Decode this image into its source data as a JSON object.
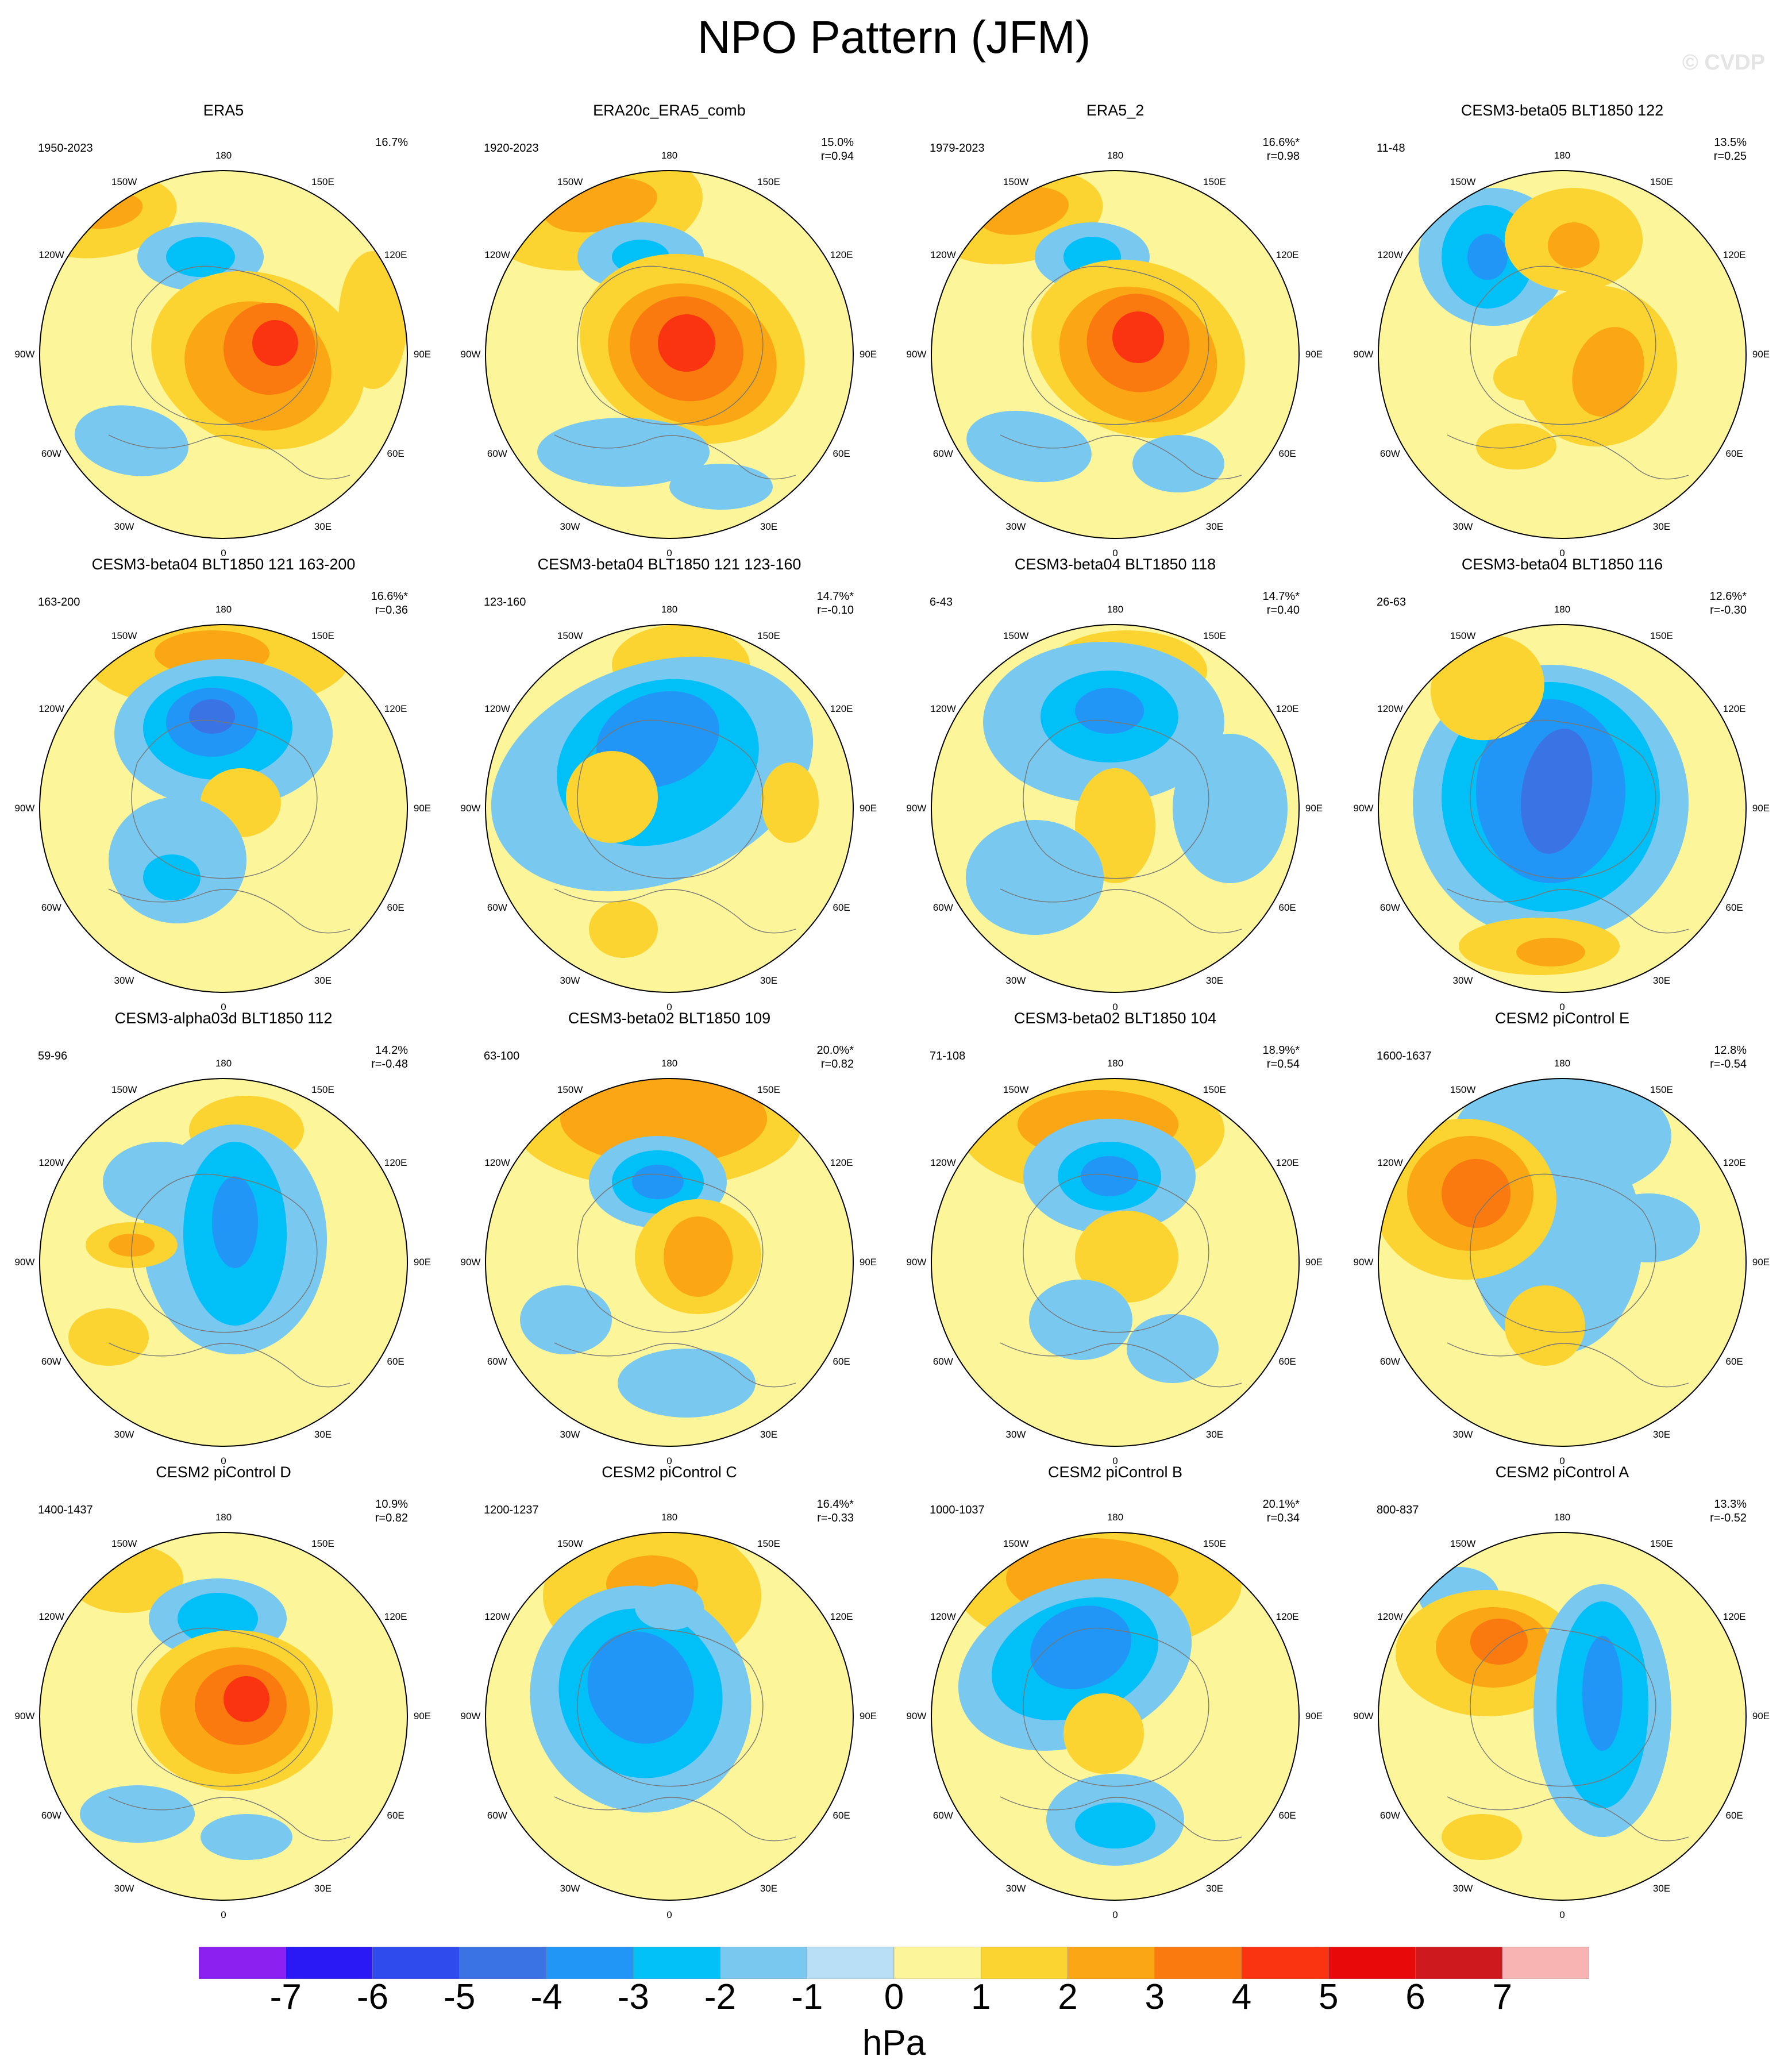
{
  "title": "NPO Pattern (JFM)",
  "watermark": "© CVDP",
  "lon_labels": [
    "180",
    "150E",
    "120E",
    "90E",
    "60E",
    "30E",
    "0",
    "30W",
    "60W",
    "90W",
    "120W",
    "150W"
  ],
  "colors": {
    "-7": "#8a1ff0",
    "-6": "#2a19f5",
    "-5": "#2f4aed",
    "-4": "#3a73e3",
    "-3": "#2196f7",
    "-2": "#01c0f7",
    "-1": "#79c8f0",
    "0n": "#b7def4",
    "0p": "#fdf59a",
    "1": "#fcd432",
    "2": "#fba614",
    "3": "#fb7a0f",
    "4": "#fa3410",
    "5": "#e80a0a",
    "6": "#ce1a1e",
    "7": "#f8b3b3"
  },
  "colorbar": {
    "ticks": [
      "-7",
      "-6",
      "-5",
      "-4",
      "-3",
      "-2",
      "-1",
      "0",
      "1",
      "2",
      "3",
      "4",
      "5",
      "6",
      "7"
    ],
    "units": "hPa"
  },
  "panels": [
    {
      "title": "ERA5",
      "period": "1950-2023",
      "pct": "16.7%",
      "corr": "",
      "blobs": [
        [
          "1",
          -210,
          -240,
          130,
          70,
          -10
        ],
        [
          "2",
          -200,
          -250,
          60,
          30,
          -10
        ],
        [
          "-1",
          -40,
          -170,
          110,
          60,
          0
        ],
        [
          "-2",
          -40,
          -170,
          60,
          35,
          0
        ],
        [
          "1",
          60,
          10,
          190,
          150,
          20
        ],
        [
          "2",
          60,
          20,
          130,
          110,
          20
        ],
        [
          "3",
          80,
          -10,
          80,
          80,
          20
        ],
        [
          "4",
          90,
          -20,
          40,
          40,
          0
        ],
        [
          "-1",
          -160,
          150,
          100,
          60,
          10
        ],
        [
          "1",
          260,
          -60,
          60,
          120,
          0
        ]
      ]
    },
    {
      "title": "ERA20c_ERA5_comb",
      "period": "1920-2023",
      "pct": "15.0%",
      "corr": "r=0.94",
      "blobs": [
        [
          "1",
          -130,
          -250,
          190,
          100,
          -10
        ],
        [
          "2",
          -120,
          -260,
          100,
          45,
          -10
        ],
        [
          "-1",
          -50,
          -170,
          110,
          60,
          0
        ],
        [
          "-2",
          -50,
          -170,
          50,
          30,
          0
        ],
        [
          "1",
          40,
          -10,
          200,
          160,
          20
        ],
        [
          "2",
          40,
          0,
          150,
          120,
          20
        ],
        [
          "3",
          30,
          -10,
          100,
          90,
          20
        ],
        [
          "4",
          30,
          -20,
          50,
          50,
          0
        ],
        [
          "-1",
          -80,
          170,
          150,
          60,
          0
        ],
        [
          "-1",
          90,
          230,
          90,
          40,
          0
        ]
      ]
    },
    {
      "title": "ERA5_2",
      "period": "1979-2023",
      "pct": "16.6%*",
      "corr": "r=0.98",
      "blobs": [
        [
          "1",
          -170,
          -240,
          150,
          80,
          -10
        ],
        [
          "2",
          -160,
          -250,
          80,
          40,
          -10
        ],
        [
          "-1",
          -40,
          -170,
          100,
          60,
          0
        ],
        [
          "-2",
          -40,
          -170,
          50,
          35,
          0
        ],
        [
          "1",
          40,
          -10,
          190,
          150,
          20
        ],
        [
          "2",
          40,
          0,
          140,
          115,
          20
        ],
        [
          "3",
          40,
          -20,
          90,
          85,
          20
        ],
        [
          "4",
          40,
          -30,
          45,
          45,
          0
        ],
        [
          "-1",
          -150,
          160,
          110,
          60,
          10
        ],
        [
          "-1",
          110,
          190,
          80,
          50,
          0
        ]
      ]
    },
    {
      "title": "CESM3-beta05 BLT1850 122",
      "period": "11-48",
      "pct": "13.5%",
      "corr": "r=0.25",
      "blobs": [
        [
          "-1",
          -120,
          -170,
          130,
          120,
          0
        ],
        [
          "-2",
          -130,
          -170,
          80,
          90,
          0
        ],
        [
          "-3",
          -130,
          -170,
          35,
          40,
          0
        ],
        [
          "1",
          20,
          -200,
          120,
          90,
          0
        ],
        [
          "2",
          20,
          -190,
          45,
          40,
          0
        ],
        [
          "1",
          60,
          20,
          140,
          140,
          20
        ],
        [
          "2",
          80,
          30,
          60,
          80,
          20
        ],
        [
          "1",
          -60,
          40,
          60,
          40,
          0
        ],
        [
          "1",
          -80,
          160,
          70,
          40,
          0
        ]
      ]
    },
    {
      "title": "CESM3-beta04 BLT1850 121 163-200",
      "period": "163-200",
      "pct": "16.6%*",
      "corr": "r=0.36",
      "blobs": [
        [
          "1",
          -10,
          -260,
          230,
          90,
          0
        ],
        [
          "2",
          -20,
          -270,
          100,
          40,
          0
        ],
        [
          "-1",
          0,
          -130,
          190,
          130,
          0
        ],
        [
          "-2",
          -10,
          -140,
          130,
          90,
          0
        ],
        [
          "-3",
          -20,
          -150,
          80,
          60,
          0
        ],
        [
          "-4",
          -20,
          -160,
          40,
          30,
          0
        ],
        [
          "1",
          30,
          -10,
          70,
          60,
          0
        ],
        [
          "-1",
          -80,
          90,
          120,
          110,
          0
        ],
        [
          "-2",
          -90,
          120,
          50,
          40,
          0
        ]
      ]
    },
    {
      "title": "CESM3-beta04 BLT1850 121 123-160",
      "period": "123-160",
      "pct": "14.7%*",
      "corr": "r=-0.10",
      "blobs": [
        [
          "1",
          20,
          -250,
          120,
          70,
          0
        ],
        [
          "-1",
          -30,
          -60,
          290,
          190,
          -20
        ],
        [
          "-1",
          -180,
          -40,
          100,
          80,
          0
        ],
        [
          "-2",
          -20,
          -80,
          180,
          140,
          -20
        ],
        [
          "-3",
          -20,
          -120,
          110,
          80,
          -20
        ],
        [
          "1",
          -100,
          -20,
          80,
          80,
          0
        ],
        [
          "1",
          -80,
          210,
          60,
          50,
          0
        ],
        [
          "1",
          210,
          -10,
          50,
          70,
          0
        ]
      ]
    },
    {
      "title": "CESM3-beta04 BLT1850 118",
      "period": "6-43",
      "pct": "14.7%*",
      "corr": "r=0.40",
      "blobs": [
        [
          "1",
          20,
          -240,
          140,
          70,
          0
        ],
        [
          "2",
          30,
          -240,
          60,
          30,
          0
        ],
        [
          "-1",
          -20,
          -150,
          210,
          140,
          0
        ],
        [
          "-2",
          -10,
          -160,
          120,
          80,
          0
        ],
        [
          "-3",
          -10,
          -170,
          60,
          40,
          0
        ],
        [
          "1",
          0,
          30,
          70,
          100,
          0
        ],
        [
          "-1",
          -140,
          120,
          120,
          100,
          0
        ],
        [
          "-1",
          200,
          0,
          100,
          130,
          0
        ]
      ]
    },
    {
      "title": "CESM3-beta04 BLT1850 116",
      "period": "26-63",
      "pct": "12.6%*",
      "corr": "r=-0.30",
      "blobs": [
        [
          "-1",
          -20,
          -10,
          240,
          240,
          0
        ],
        [
          "-2",
          -20,
          -20,
          190,
          200,
          0
        ],
        [
          "-3",
          -20,
          -30,
          130,
          160,
          0
        ],
        [
          "-4",
          -10,
          -30,
          60,
          110,
          10
        ],
        [
          "1",
          -130,
          -210,
          100,
          90,
          -20
        ],
        [
          "1",
          -40,
          240,
          140,
          50,
          0
        ],
        [
          "2",
          -20,
          250,
          60,
          25,
          0
        ]
      ]
    },
    {
      "title": "CESM3-alpha03d BLT1850 112",
      "period": "59-96",
      "pct": "14.2%",
      "corr": "r=-0.48",
      "blobs": [
        [
          "1",
          40,
          -230,
          100,
          60,
          0
        ],
        [
          "-1",
          -110,
          -140,
          100,
          70,
          0
        ],
        [
          "-1",
          20,
          -40,
          160,
          200,
          0
        ],
        [
          "-2",
          20,
          -50,
          90,
          160,
          0
        ],
        [
          "-3",
          20,
          -70,
          40,
          80,
          0
        ],
        [
          "1",
          -160,
          -30,
          80,
          40,
          0
        ],
        [
          "2",
          -160,
          -30,
          40,
          20,
          0
        ],
        [
          "1",
          -200,
          130,
          70,
          50,
          0
        ]
      ]
    },
    {
      "title": "CESM3-beta02 BLT1850 109",
      "period": "63-100",
      "pct": "20.0%*",
      "corr": "r=0.82",
      "blobs": [
        [
          "1",
          -20,
          -240,
          250,
          110,
          0
        ],
        [
          "2",
          -10,
          -250,
          180,
          80,
          0
        ],
        [
          "-1",
          -20,
          -140,
          120,
          80,
          0
        ],
        [
          "-2",
          -20,
          -140,
          80,
          55,
          0
        ],
        [
          "-3",
          -20,
          -140,
          45,
          30,
          0
        ],
        [
          "1",
          50,
          -10,
          110,
          100,
          0
        ],
        [
          "2",
          50,
          -10,
          60,
          70,
          0
        ],
        [
          "-1",
          30,
          210,
          120,
          60,
          0
        ],
        [
          "-1",
          -180,
          100,
          80,
          60,
          0
        ]
      ]
    },
    {
      "title": "CESM3-beta02 BLT1850 104",
      "period": "71-108",
      "pct": "18.9%*",
      "corr": "r=0.54",
      "blobs": [
        [
          "1",
          -40,
          -230,
          230,
          110,
          0
        ],
        [
          "2",
          -30,
          -240,
          140,
          60,
          0
        ],
        [
          "-1",
          -10,
          -150,
          150,
          100,
          0
        ],
        [
          "-2",
          -10,
          -150,
          90,
          60,
          0
        ],
        [
          "-3",
          -10,
          -150,
          50,
          35,
          0
        ],
        [
          "1",
          20,
          -10,
          90,
          80,
          0
        ],
        [
          "-1",
          -60,
          100,
          90,
          70,
          0
        ],
        [
          "-1",
          100,
          150,
          80,
          60,
          0
        ]
      ]
    },
    {
      "title": "CESM2 piControl E",
      "period": "1600-1637",
      "pct": "12.8%",
      "corr": "r=-0.54",
      "blobs": [
        [
          "-1",
          0,
          -220,
          190,
          110,
          0
        ],
        [
          "-1",
          -10,
          -40,
          150,
          200,
          0
        ],
        [
          "1",
          -170,
          -110,
          160,
          140,
          0
        ],
        [
          "2",
          -160,
          -120,
          110,
          100,
          0
        ],
        [
          "3",
          -150,
          -120,
          60,
          60,
          0
        ],
        [
          "1",
          -30,
          110,
          70,
          70,
          0
        ],
        [
          "-1",
          150,
          -60,
          90,
          60,
          0
        ]
      ]
    },
    {
      "title": "CESM2 piControl D",
      "period": "1400-1437",
      "pct": "10.9%",
      "corr": "r=0.82",
      "blobs": [
        [
          "1",
          -170,
          -240,
          100,
          60,
          0
        ],
        [
          "-1",
          -10,
          -170,
          120,
          70,
          0
        ],
        [
          "-2",
          -10,
          -170,
          70,
          45,
          0
        ],
        [
          "1",
          20,
          -10,
          170,
          140,
          0
        ],
        [
          "2",
          20,
          -10,
          130,
          110,
          0
        ],
        [
          "3",
          30,
          -20,
          80,
          70,
          0
        ],
        [
          "4",
          40,
          -30,
          40,
          40,
          0
        ],
        [
          "-1",
          -150,
          170,
          100,
          50,
          0
        ],
        [
          "-1",
          40,
          210,
          80,
          40,
          0
        ]
      ]
    },
    {
      "title": "CESM2 piControl C",
      "period": "1200-1237",
      "pct": "16.4%*",
      "corr": "r=-0.33",
      "blobs": [
        [
          "1",
          -30,
          -210,
          190,
          130,
          0
        ],
        [
          "2",
          -30,
          -230,
          80,
          50,
          0
        ],
        [
          "-1",
          -50,
          -30,
          190,
          200,
          -30
        ],
        [
          "-2",
          -50,
          -40,
          140,
          150,
          -30
        ],
        [
          "-3",
          -50,
          -50,
          90,
          100,
          -30
        ],
        [
          "-1",
          0,
          -190,
          60,
          40,
          0
        ]
      ]
    },
    {
      "title": "CESM2 piControl B",
      "period": "1000-1037",
      "pct": "20.1%*",
      "corr": "r=0.34",
      "blobs": [
        [
          "1",
          -30,
          -230,
          250,
          120,
          0
        ],
        [
          "2",
          -40,
          -240,
          150,
          70,
          0
        ],
        [
          "-1",
          -70,
          -90,
          210,
          140,
          -20
        ],
        [
          "-2",
          -70,
          -100,
          150,
          100,
          -20
        ],
        [
          "-3",
          -60,
          -120,
          90,
          70,
          -20
        ],
        [
          "1",
          -20,
          30,
          70,
          70,
          0
        ],
        [
          "-1",
          0,
          180,
          120,
          80,
          0
        ],
        [
          "-2",
          0,
          190,
          70,
          40,
          0
        ]
      ]
    },
    {
      "title": "CESM2 piControl A",
      "period": "800-837",
      "pct": "13.3%",
      "corr": "r=-0.52",
      "blobs": [
        [
          "-1",
          -180,
          -210,
          70,
          50,
          0
        ],
        [
          "1",
          -130,
          -110,
          160,
          110,
          0
        ],
        [
          "2",
          -120,
          -120,
          100,
          70,
          0
        ],
        [
          "3",
          -110,
          -130,
          50,
          40,
          0
        ],
        [
          "-1",
          70,
          -10,
          120,
          220,
          0
        ],
        [
          "-2",
          70,
          -20,
          80,
          180,
          0
        ],
        [
          "-3",
          70,
          -40,
          35,
          100,
          0
        ],
        [
          "1",
          -140,
          210,
          70,
          40,
          0
        ]
      ]
    }
  ]
}
